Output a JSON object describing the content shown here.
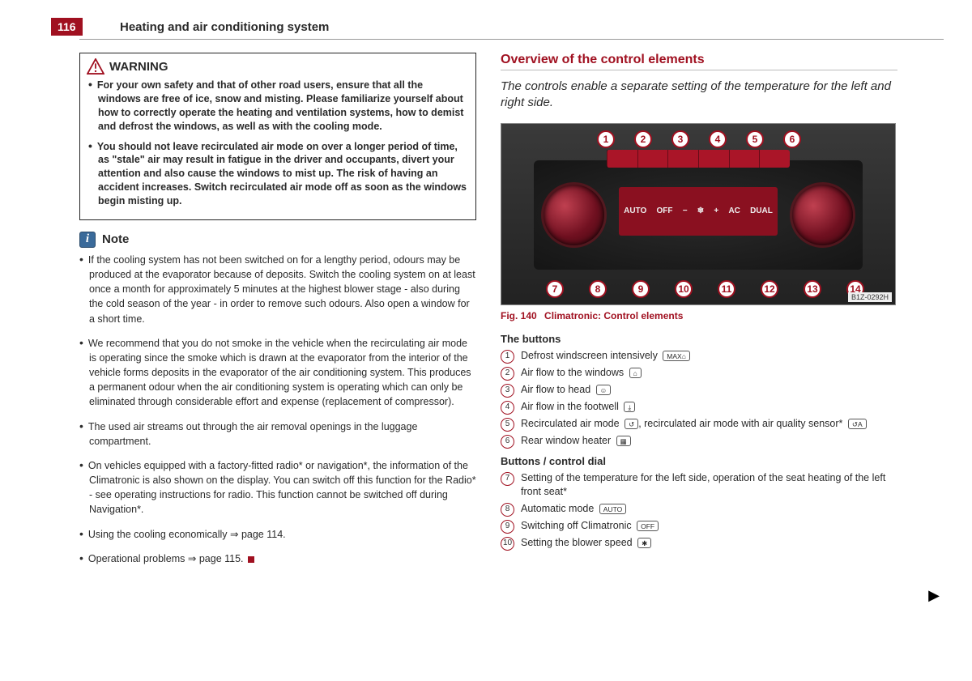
{
  "colors": {
    "accent": "#a01020",
    "text": "#2a2a2a",
    "note_icon_bg": "#3a6a9a"
  },
  "page_number": "116",
  "section_title": "Heating and air conditioning system",
  "warning": {
    "label": "WARNING",
    "items": [
      "For your own safety and that of other road users, ensure that all the windows are free of ice, snow and misting. Please familiarize yourself about how to correctly operate the heating and ventilation systems, how to demist and defrost the windows, as well as with the cooling mode.",
      "You should not leave recirculated air mode on over a longer period of time, as \"stale\" air may result in fatigue in the driver and occupants, divert your attention and also cause the windows to mist up. The risk of having an accident increases. Switch recirculated air mode off as soon as the windows begin misting up."
    ]
  },
  "note": {
    "label": "Note",
    "items": [
      "If the cooling system has not been switched on for a lengthy period, odours may be produced at the evaporator because of deposits. Switch the cooling system on at least once a month for approximately 5 minutes at the highest blower stage - also during the cold season of the year - in order to remove such odours. Also open a window for a short time.",
      "We recommend that you do not smoke in the vehicle when the recirculating air mode is operating since the smoke which is drawn at the evaporator from the interior of the vehicle forms deposits in the evaporator of the air conditioning system. This produces a permanent odour when the air conditioning system is operating which can only be eliminated through considerable effort and expense (replacement of compressor).",
      "The used air streams out through the air removal openings in the luggage compartment.",
      "On vehicles equipped with a factory-fitted radio* or navigation*, the information of the Climatronic is also shown on the display. You can switch off this function for the Radio* - see operating instructions for radio. This function cannot be switched off during Navigation*.",
      "Using the cooling economically ⇒ page 114.",
      "Operational problems ⇒ page 115."
    ]
  },
  "right": {
    "title": "Overview of the control elements",
    "subtitle": "The controls enable a separate setting of the temperature for the left and right side.",
    "figure": {
      "code": "B1Z-0292H",
      "caption_prefix": "Fig. 140",
      "caption_text": "Climatronic: Control elements",
      "top_callouts": [
        1,
        2,
        3,
        4,
        5,
        6
      ],
      "bottom_callouts": [
        7,
        8,
        9,
        10,
        11,
        12,
        13,
        14
      ],
      "mid_labels": [
        "AUTO",
        "OFF",
        "−",
        "❄",
        "+",
        "AC",
        "DUAL"
      ]
    },
    "buttons_head": "The buttons",
    "buttons": [
      {
        "n": "1",
        "text": "Defrost windscreen intensively",
        "tag": "MAX⌂"
      },
      {
        "n": "2",
        "text": "Air flow to the windows",
        "tag": "⌂"
      },
      {
        "n": "3",
        "text": "Air flow to head",
        "tag": "☺"
      },
      {
        "n": "4",
        "text": "Air flow in the footwell",
        "tag": "⤓"
      },
      {
        "n": "5",
        "text": "Recirculated air mode",
        "tag": "↺",
        "extra": ", recirculated air mode with air quality sensor*",
        "tag2": "↺A"
      },
      {
        "n": "6",
        "text": "Rear window heater",
        "tag": "▦"
      }
    ],
    "dial_head": "Buttons / control dial",
    "dials": [
      {
        "n": "7",
        "text": "Setting of the temperature for the left side, operation of the seat heating of the left front seat*"
      },
      {
        "n": "8",
        "text": "Automatic mode",
        "tag": "AUTO"
      },
      {
        "n": "9",
        "text": "Switching off Climatronic",
        "tag": "OFF"
      },
      {
        "n": "10",
        "text": "Setting the blower speed",
        "tag": "✱"
      }
    ]
  }
}
